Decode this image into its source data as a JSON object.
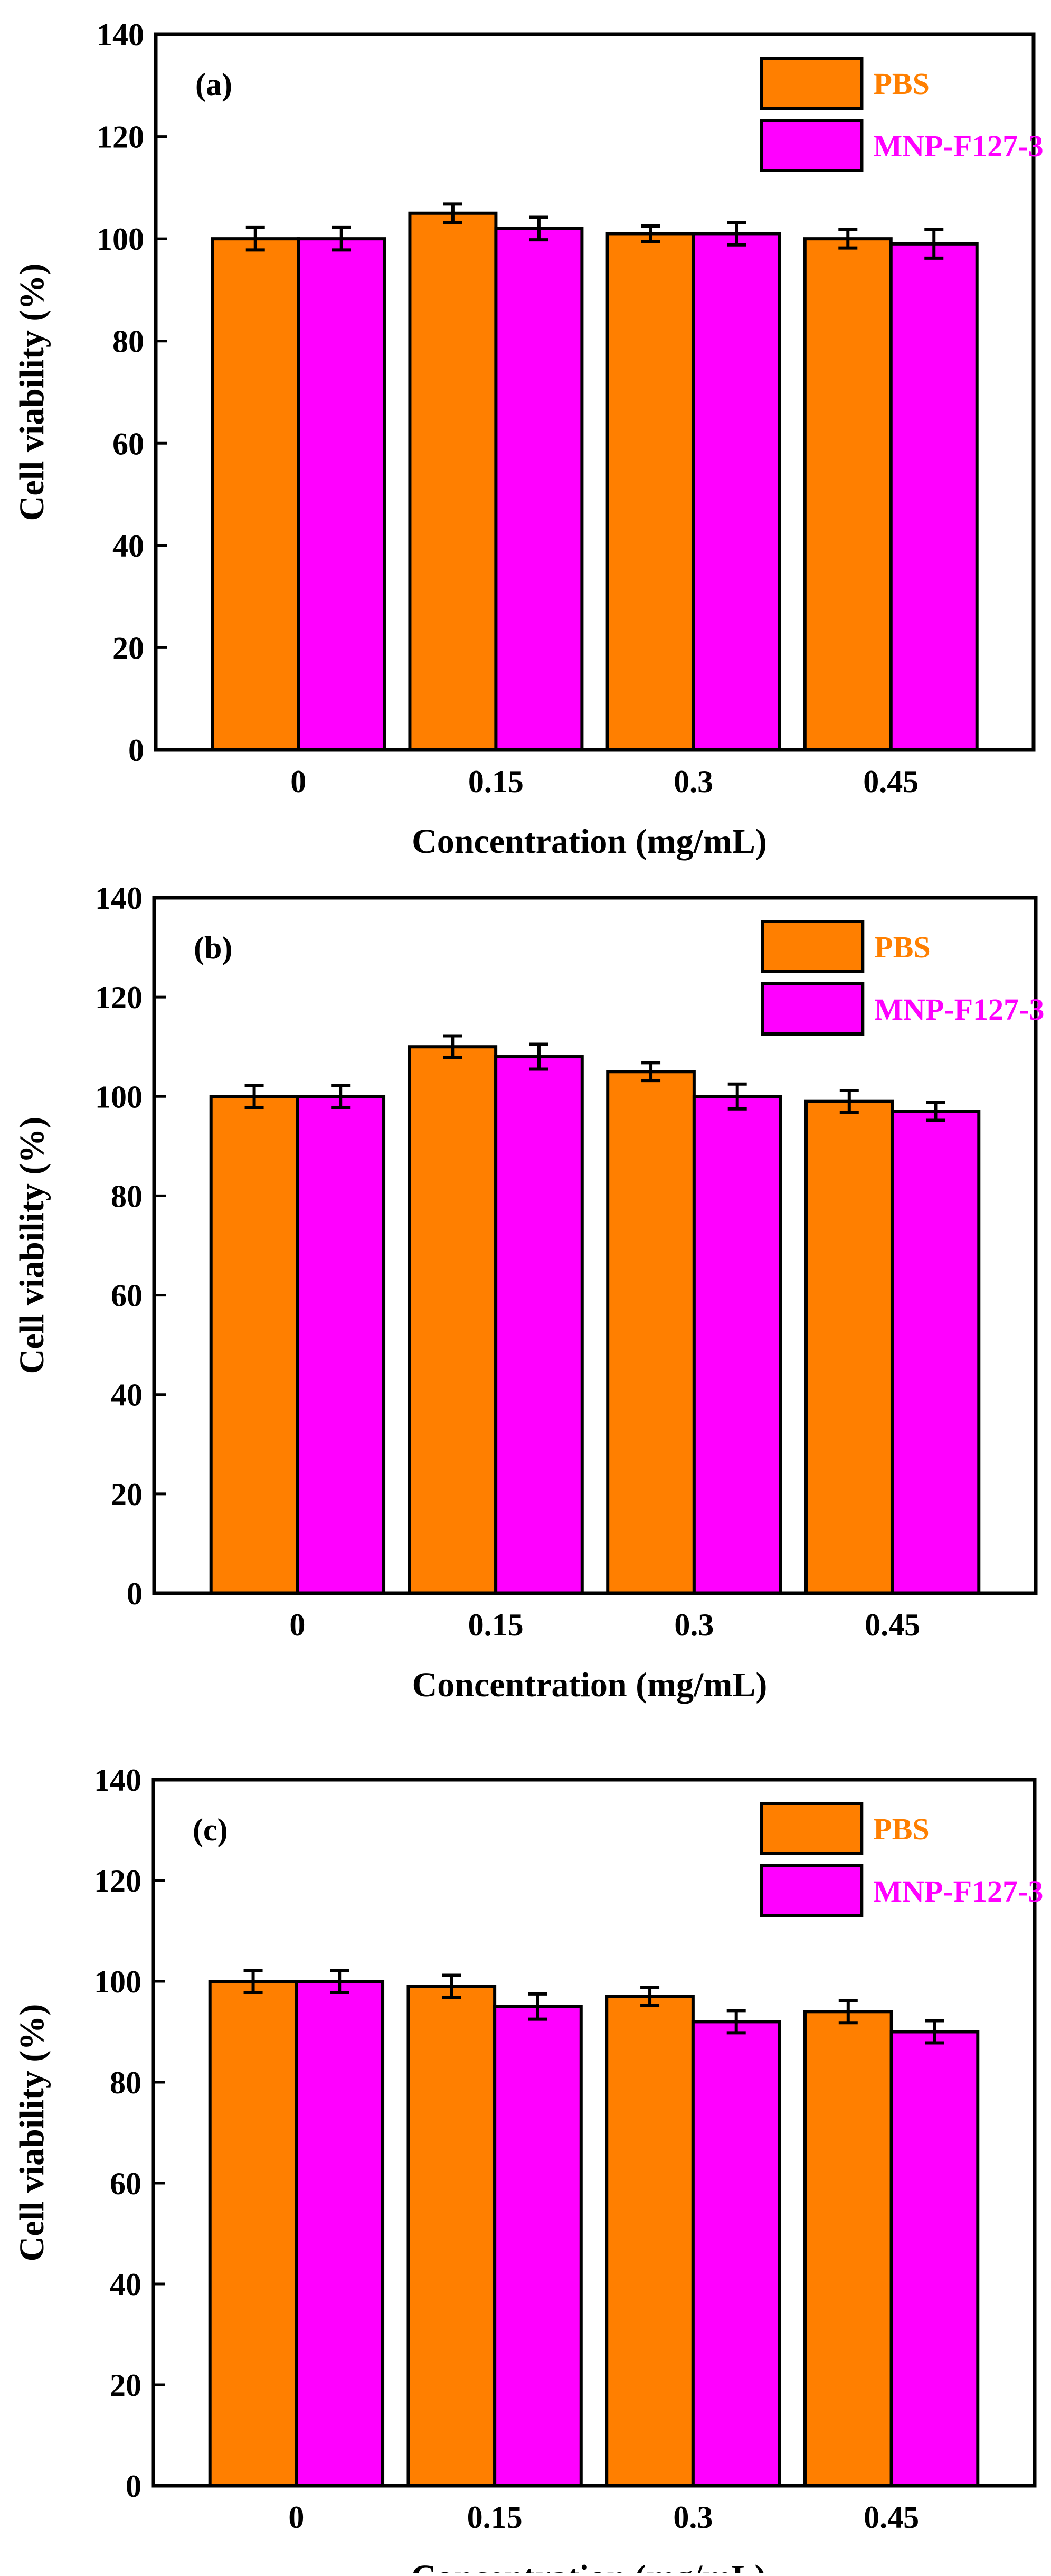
{
  "figure": {
    "colors": {
      "pbs": "#FF7F00",
      "mnp": "#FF00FF",
      "axis": "#000000"
    }
  },
  "chart_data": [
    {
      "type": "bar",
      "panel_label": "(a)",
      "title": "",
      "xlabel": "Concentration (mg/mL)",
      "ylabel": "Cell viability (%)",
      "categories": [
        "0",
        "0.15",
        "0.3",
        "0.45"
      ],
      "ylim": [
        0,
        140
      ],
      "yticks": [
        "0",
        "20",
        "40",
        "60",
        "80",
        "100",
        "120",
        "140"
      ],
      "series": [
        {
          "name": "PBS",
          "color": "#FF7F00",
          "values": [
            100,
            105,
            101,
            100
          ],
          "errors": [
            2.2,
            1.8,
            1.5,
            1.8
          ]
        },
        {
          "name": "MNP-F127-3",
          "color": "#FF00FF",
          "values": [
            100,
            102,
            101,
            99
          ],
          "errors": [
            2.2,
            2.2,
            2.2,
            2.8
          ]
        }
      ],
      "legend_position": "top-right",
      "grid": false
    },
    {
      "type": "bar",
      "panel_label": "(b)",
      "title": "",
      "xlabel": "Concentration (mg/mL)",
      "ylabel": "Cell viability (%)",
      "categories": [
        "0",
        "0.15",
        "0.3",
        "0.45"
      ],
      "ylim": [
        0,
        140
      ],
      "yticks": [
        "0",
        "20",
        "40",
        "60",
        "80",
        "100",
        "120",
        "140"
      ],
      "series": [
        {
          "name": "PBS",
          "color": "#FF7F00",
          "values": [
            100,
            110,
            105,
            99
          ],
          "errors": [
            2.2,
            2.2,
            1.8,
            2.2
          ]
        },
        {
          "name": "MNP-F127-3",
          "color": "#FF00FF",
          "values": [
            100,
            108,
            100,
            97
          ],
          "errors": [
            2.2,
            2.5,
            2.5,
            1.8
          ]
        }
      ],
      "legend_position": "top-right",
      "grid": false
    },
    {
      "type": "bar",
      "panel_label": "(c)",
      "title": "",
      "xlabel": "Concentration (mg/mL)",
      "ylabel": "Cell viability (%)",
      "categories": [
        "0",
        "0.15",
        "0.3",
        "0.45"
      ],
      "ylim": [
        0,
        140
      ],
      "yticks": [
        "0",
        "20",
        "40",
        "60",
        "80",
        "100",
        "120",
        "140"
      ],
      "series": [
        {
          "name": "PBS",
          "color": "#FF7F00",
          "values": [
            100,
            99,
            97,
            94
          ],
          "errors": [
            2.2,
            2.2,
            1.8,
            2.2
          ]
        },
        {
          "name": "MNP-F127-3",
          "color": "#FF00FF",
          "values": [
            100,
            95,
            92,
            90
          ],
          "errors": [
            2.2,
            2.5,
            2.2,
            2.2
          ]
        }
      ],
      "legend_position": "top-right",
      "grid": false
    }
  ]
}
